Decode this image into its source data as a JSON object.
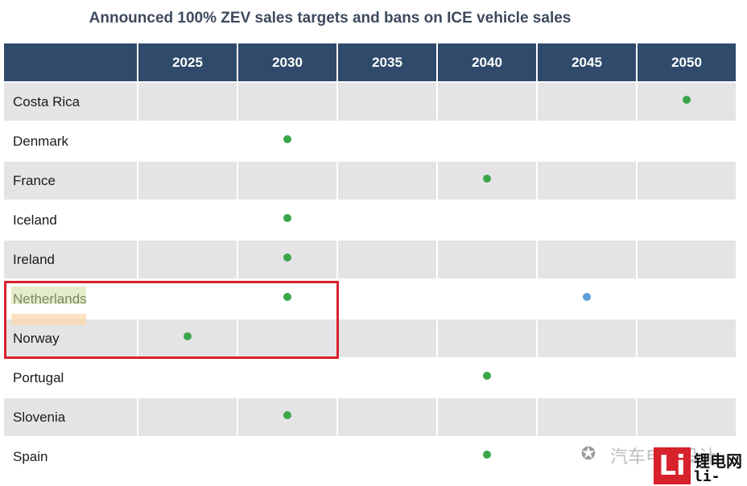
{
  "title": "Announced 100% ZEV sales targets and bans on ICE vehicle sales",
  "columns": [
    "2025",
    "2030",
    "2035",
    "2040",
    "2045",
    "2050"
  ],
  "rows": [
    {
      "country": "Costa Rica",
      "marks": {
        "2050": "green"
      }
    },
    {
      "country": "Denmark",
      "marks": {
        "2030": "green"
      }
    },
    {
      "country": "France",
      "marks": {
        "2040": "green"
      }
    },
    {
      "country": "Iceland",
      "marks": {
        "2030": "green"
      }
    },
    {
      "country": "Ireland",
      "marks": {
        "2030": "green"
      }
    },
    {
      "country": "Netherlands",
      "marks": {
        "2030": "green",
        "2045": "blue"
      }
    },
    {
      "country": "Norway",
      "marks": {
        "2025": "green"
      }
    },
    {
      "country": "Portugal",
      "marks": {
        "2040": "green"
      }
    },
    {
      "country": "Slovenia",
      "marks": {
        "2030": "green"
      }
    },
    {
      "country": "Spain",
      "marks": {
        "2040": "green"
      }
    }
  ],
  "colors": {
    "header_bg": "#2f4a6b",
    "row_alt_bg": "#e4e4e6",
    "green": "#3aa64a",
    "blue": "#5a9fd8",
    "highlight": "#d7212c"
  },
  "watermark": {
    "icon": "wechat-icon",
    "text": "汽车电子设计",
    "logo": "Li",
    "logo_cn": "锂电网",
    "logo_url": "li-b.cn"
  }
}
